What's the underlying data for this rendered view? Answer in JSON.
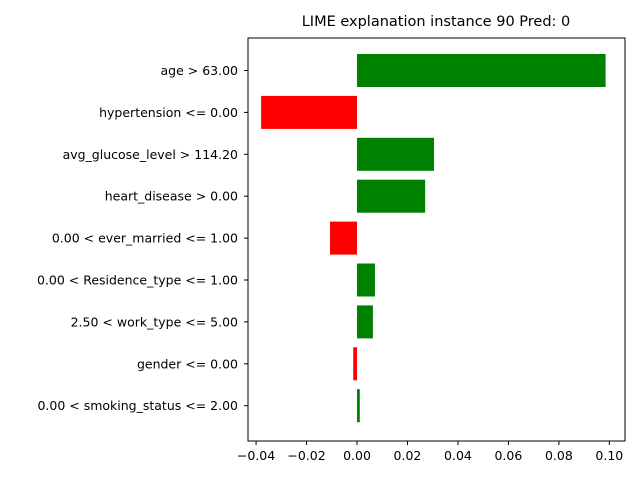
{
  "chart_data": {
    "type": "bar",
    "orientation": "horizontal",
    "title": "LIME explanation instance 90 Pred: 0",
    "xlabel": "",
    "ylabel": "",
    "xlim": [
      -0.0432,
      0.1062
    ],
    "xticks": [
      -0.04,
      -0.02,
      0.0,
      0.02,
      0.04,
      0.06,
      0.08,
      0.1
    ],
    "xtick_labels": [
      "−0.04",
      "−0.02",
      "0.00",
      "0.02",
      "0.04",
      "0.06",
      "0.08",
      "0.10"
    ],
    "grid": false,
    "legend": "none",
    "positive_color": "#008000",
    "negative_color": "#ff0000",
    "categories": [
      "age > 63.00",
      "hypertension <= 0.00",
      "avg_glucose_level > 114.20",
      "heart_disease > 0.00",
      "0.00 < ever_married <= 1.00",
      "0.00 < Residence_type <= 1.00",
      "2.50 < work_type <= 5.00",
      "gender <= 0.00",
      "0.00 < smoking_status <= 2.00"
    ],
    "values": [
      0.0985,
      -0.038,
      0.0305,
      0.027,
      -0.0107,
      0.0071,
      0.0063,
      -0.0015,
      0.0011
    ]
  }
}
